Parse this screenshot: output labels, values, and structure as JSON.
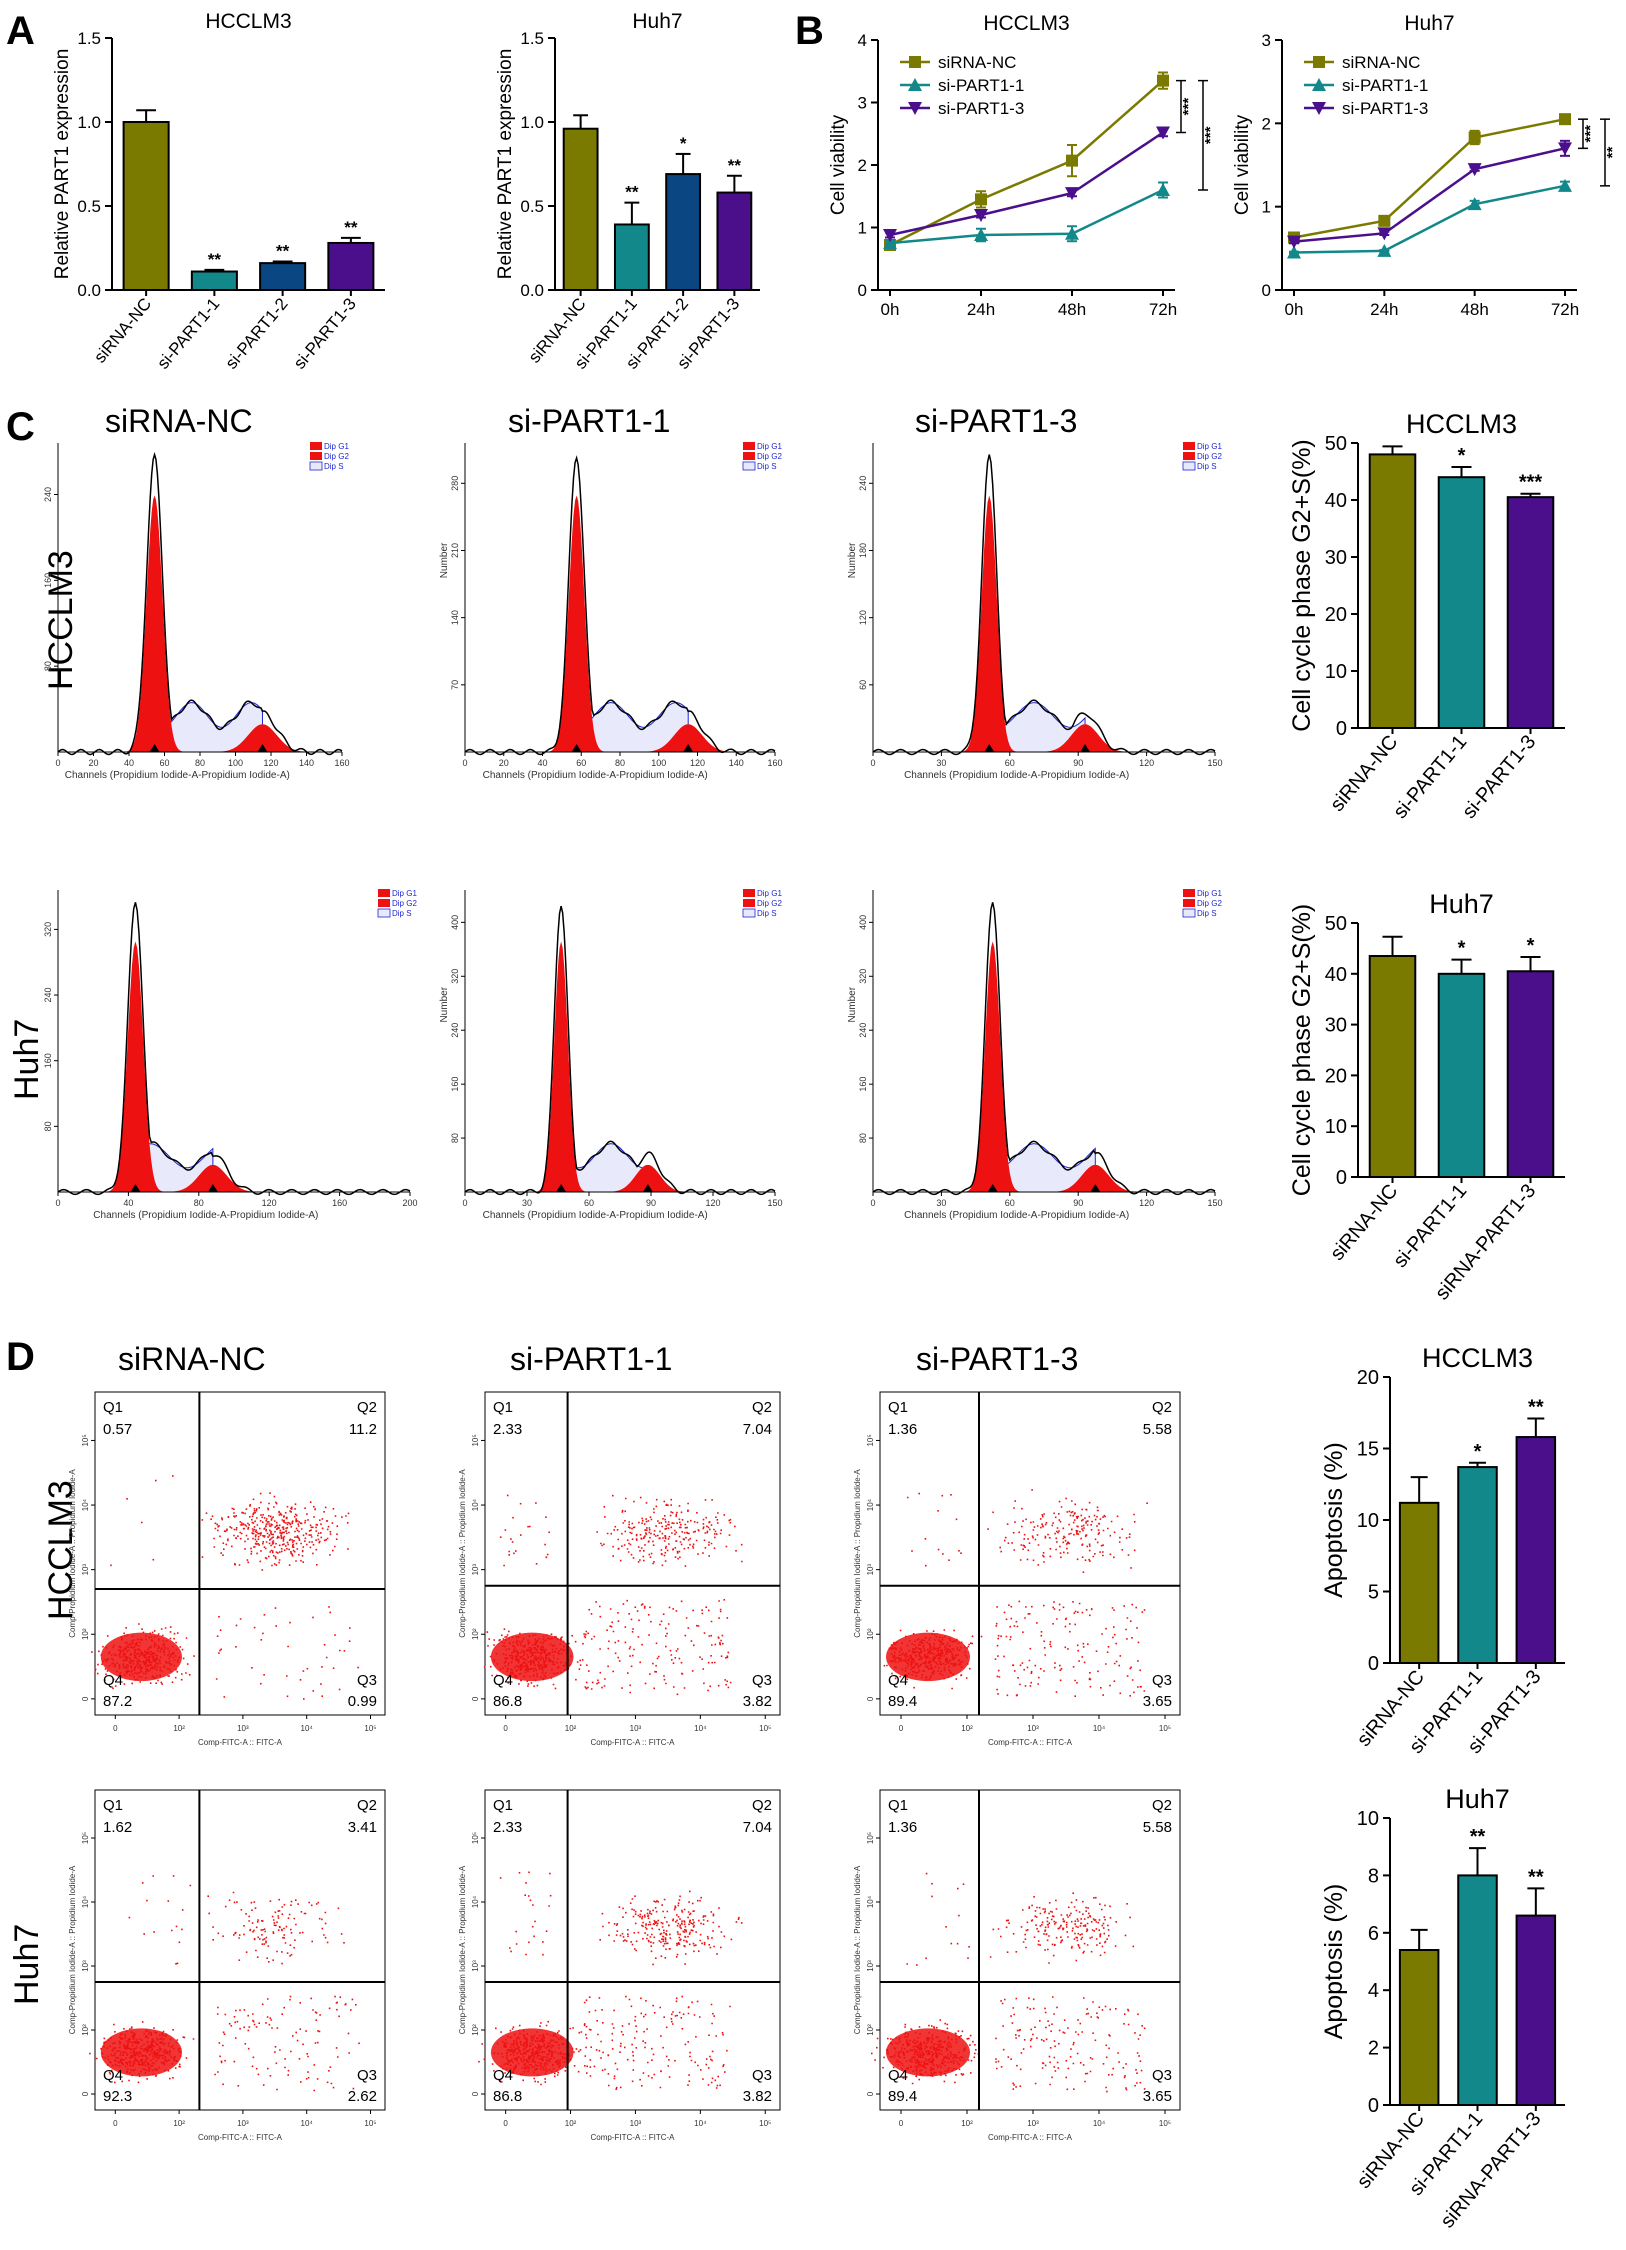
{
  "colors": {
    "olive": "#7A7A00",
    "teal": "#13888A",
    "navy": "#0A4682",
    "purple": "#4B0F8C",
    "red": "#EE1111",
    "blue": "#1F27D2",
    "black": "#000000"
  },
  "panels": {
    "A": "A",
    "B": "B",
    "C": "C",
    "D": "D"
  },
  "conditions": {
    "nc": "siRNA-NC",
    "p11": "si-PART1-1",
    "p13": "si-PART1-3"
  },
  "rows": {
    "hcclm3": "HCCLM3",
    "huh7": "Huh7"
  },
  "histogram": {
    "legend": [
      "Dip G1",
      "Dip G2",
      "Dip S"
    ],
    "ylabel": "Number",
    "xlabel": "Channels (Propidium Iodide-A-Propidium Iodide-A)",
    "xticks_r1": [
      [
        "0",
        "20",
        "40",
        "60",
        "80",
        "100",
        "120",
        "140",
        "160"
      ],
      [
        "0",
        "20",
        "40",
        "60",
        "80",
        "100",
        "120",
        "140",
        "160"
      ],
      [
        "0",
        "30",
        "60",
        "90",
        "120",
        "150"
      ]
    ],
    "xticks_r2": [
      [
        "0",
        "40",
        "80",
        "120",
        "160",
        "200"
      ],
      [
        "0",
        "30",
        "60",
        "90",
        "120",
        "150"
      ],
      [
        "0",
        "30",
        "60",
        "90",
        "120",
        "150"
      ]
    ],
    "yticks": [
      [
        "80",
        "160",
        "240"
      ],
      [
        "70",
        "140",
        "210",
        "280"
      ],
      [
        "60",
        "120",
        "180",
        "240"
      ],
      [
        "80",
        "160",
        "240",
        "320"
      ],
      [
        "80",
        "160",
        "240",
        "320",
        "400"
      ],
      [
        "80",
        "160",
        "240",
        "320",
        "400"
      ]
    ]
  },
  "flow": {
    "xaxis": "Comp-FITC-A :: FITC-A",
    "yaxis": "Comp-Propidium Iodide-A :: Propidium Iodide-A",
    "quadrants": [
      "Q1",
      "Q2",
      "Q3",
      "Q4"
    ],
    "xticks": [
      "0",
      "10²",
      "10³",
      "10⁴",
      "10⁵"
    ],
    "yticks": [
      "0",
      "10²",
      "10³",
      "10⁴",
      "10⁵"
    ],
    "plots": [
      {
        "row": "HCCLM3",
        "condition": "siRNA-NC",
        "q1": "0.57",
        "q2": "11.2",
        "q3": "0.99",
        "q4": "87.2"
      },
      {
        "row": "HCCLM3",
        "condition": "si-PART1-1",
        "q1": "2.33",
        "q2": "7.04",
        "q3": "3.82",
        "q4": "86.8"
      },
      {
        "row": "HCCLM3",
        "condition": "si-PART1-3",
        "q1": "1.36",
        "q2": "5.58",
        "q3": "3.65",
        "q4": "89.4"
      },
      {
        "row": "Huh7",
        "condition": "siRNA-NC",
        "q1": "1.62",
        "q2": "3.41",
        "q3": "2.62",
        "q4": "92.3"
      },
      {
        "row": "Huh7",
        "condition": "si-PART1-1",
        "q1": "2.33",
        "q2": "7.04",
        "q3": "3.82",
        "q4": "86.8"
      },
      {
        "row": "Huh7",
        "condition": "si-PART1-3",
        "q1": "1.36",
        "q2": "5.58",
        "q3": "3.65",
        "q4": "89.4"
      }
    ]
  },
  "chart_data": [
    {
      "id": "A1",
      "type": "bar",
      "title": "HCCLM3",
      "ylabel": "Relative PART1 expression",
      "categories": [
        "siRNA-NC",
        "si-PART1-1",
        "si-PART1-2",
        "si-PART1-3"
      ],
      "values": [
        1.0,
        0.11,
        0.16,
        0.28
      ],
      "errors": [
        0.07,
        0.01,
        0.01,
        0.03
      ],
      "significance": [
        "",
        "**",
        "**",
        "**"
      ],
      "colors": [
        "olive",
        "teal",
        "navy",
        "purple"
      ],
      "ylim": [
        0,
        1.5
      ],
      "yticks": [
        "0.0",
        "0.5",
        "1.0",
        "1.5"
      ]
    },
    {
      "id": "A2",
      "type": "bar",
      "title": "Huh7",
      "ylabel": "Relative PART1 expression",
      "categories": [
        "siRNA-NC",
        "si-PART1-1",
        "si-PART1-2",
        "si-PART1-3"
      ],
      "values": [
        0.96,
        0.39,
        0.69,
        0.58
      ],
      "errors": [
        0.08,
        0.13,
        0.12,
        0.1
      ],
      "significance": [
        "",
        "**",
        "*",
        "**"
      ],
      "colors": [
        "olive",
        "teal",
        "navy",
        "purple"
      ],
      "ylim": [
        0,
        1.5
      ],
      "yticks": [
        "0.0",
        "0.5",
        "1.0",
        "1.5"
      ]
    },
    {
      "id": "B1",
      "type": "line",
      "title": "HCCLM3",
      "ylabel": "Cell viability",
      "x": [
        "0h",
        "24h",
        "48h",
        "72h"
      ],
      "series": [
        {
          "name": "siRNA-NC",
          "values": [
            0.72,
            1.45,
            2.07,
            3.35
          ],
          "errors": [
            0.05,
            0.13,
            0.25,
            0.13
          ],
          "color": "olive",
          "marker": "square"
        },
        {
          "name": "si-PART1-1",
          "values": [
            0.75,
            0.88,
            0.9,
            1.6
          ],
          "errors": [
            0.05,
            0.1,
            0.12,
            0.12
          ],
          "color": "teal",
          "marker": "triangle-up"
        },
        {
          "name": "si-PART1-3",
          "values": [
            0.88,
            1.2,
            1.55,
            2.52
          ],
          "errors": [
            0.04,
            0.04,
            0.05,
            0.06
          ],
          "color": "purple",
          "marker": "triangle-down"
        }
      ],
      "significance": [
        "***",
        "***"
      ],
      "ylim": [
        0,
        4
      ],
      "yticks": [
        "0",
        "1",
        "2",
        "3",
        "4"
      ],
      "legend": "top-left"
    },
    {
      "id": "B2",
      "type": "line",
      "title": "Huh7",
      "ylabel": "Cell viability",
      "x": [
        "0h",
        "24h",
        "48h",
        "72h"
      ],
      "series": [
        {
          "name": "siRNA-NC",
          "values": [
            0.63,
            0.83,
            1.83,
            2.05
          ],
          "errors": [
            0.02,
            0.02,
            0.08,
            0.03
          ],
          "color": "olive",
          "marker": "square"
        },
        {
          "name": "si-PART1-1",
          "values": [
            0.45,
            0.47,
            1.03,
            1.25
          ],
          "errors": [
            0.01,
            0.01,
            0.04,
            0.05
          ],
          "color": "teal",
          "marker": "triangle-up"
        },
        {
          "name": "si-PART1-3",
          "values": [
            0.58,
            0.68,
            1.45,
            1.7
          ],
          "errors": [
            0.02,
            0.02,
            0.02,
            0.09
          ],
          "color": "purple",
          "marker": "triangle-down"
        }
      ],
      "significance": [
        "***",
        "**"
      ],
      "ylim": [
        0,
        3
      ],
      "yticks": [
        "0",
        "1",
        "2",
        "3"
      ],
      "legend": "top-left"
    },
    {
      "id": "C1",
      "type": "bar",
      "title": "HCCLM3",
      "ylabel": "Cell cycle phase G2+S(%)",
      "categories": [
        "siRNA-NC",
        "si-PART1-1",
        "si-PART1-3"
      ],
      "values": [
        48,
        44,
        40.5
      ],
      "errors": [
        1.4,
        1.8,
        0.6
      ],
      "significance": [
        "",
        "*",
        "***"
      ],
      "colors": [
        "olive",
        "teal",
        "purple"
      ],
      "ylim": [
        0,
        50
      ],
      "yticks": [
        "0",
        "10",
        "20",
        "30",
        "40",
        "50"
      ]
    },
    {
      "id": "C2",
      "type": "bar",
      "title": "Huh7",
      "ylabel": "Cell cycle phase G2+S(%)",
      "categories": [
        "siRNA-NC",
        "si-PART1-1",
        "siRNA-PART1-3"
      ],
      "values": [
        43.5,
        40,
        40.5
      ],
      "errors": [
        3.8,
        2.8,
        2.8
      ],
      "significance": [
        "",
        "*",
        "*"
      ],
      "colors": [
        "olive",
        "teal",
        "purple"
      ],
      "ylim": [
        0,
        50
      ],
      "yticks": [
        "0",
        "10",
        "20",
        "30",
        "40",
        "50"
      ]
    },
    {
      "id": "D1",
      "type": "bar",
      "title": "HCCLM3",
      "ylabel": "Apoptosis (%)",
      "categories": [
        "siRNA-NC",
        "si-PART1-1",
        "si-PART1-3"
      ],
      "values": [
        11.2,
        13.7,
        15.8
      ],
      "errors": [
        1.8,
        0.3,
        1.3
      ],
      "significance": [
        "",
        "*",
        "**"
      ],
      "colors": [
        "olive",
        "teal",
        "purple"
      ],
      "ylim": [
        0,
        20
      ],
      "yticks": [
        "0",
        "5",
        "10",
        "15",
        "20"
      ]
    },
    {
      "id": "D2",
      "type": "bar",
      "title": "Huh7",
      "ylabel": "Apoptosis (%)",
      "categories": [
        "siRNA-NC",
        "si-PART1-1",
        "siRNA-PART1-3"
      ],
      "values": [
        5.4,
        8.0,
        6.6
      ],
      "errors": [
        0.7,
        0.95,
        0.95
      ],
      "significance": [
        "",
        "**",
        "**"
      ],
      "colors": [
        "olive",
        "teal",
        "purple"
      ],
      "ylim": [
        0,
        10
      ],
      "yticks": [
        "0",
        "2",
        "4",
        "6",
        "8",
        "10"
      ]
    }
  ]
}
